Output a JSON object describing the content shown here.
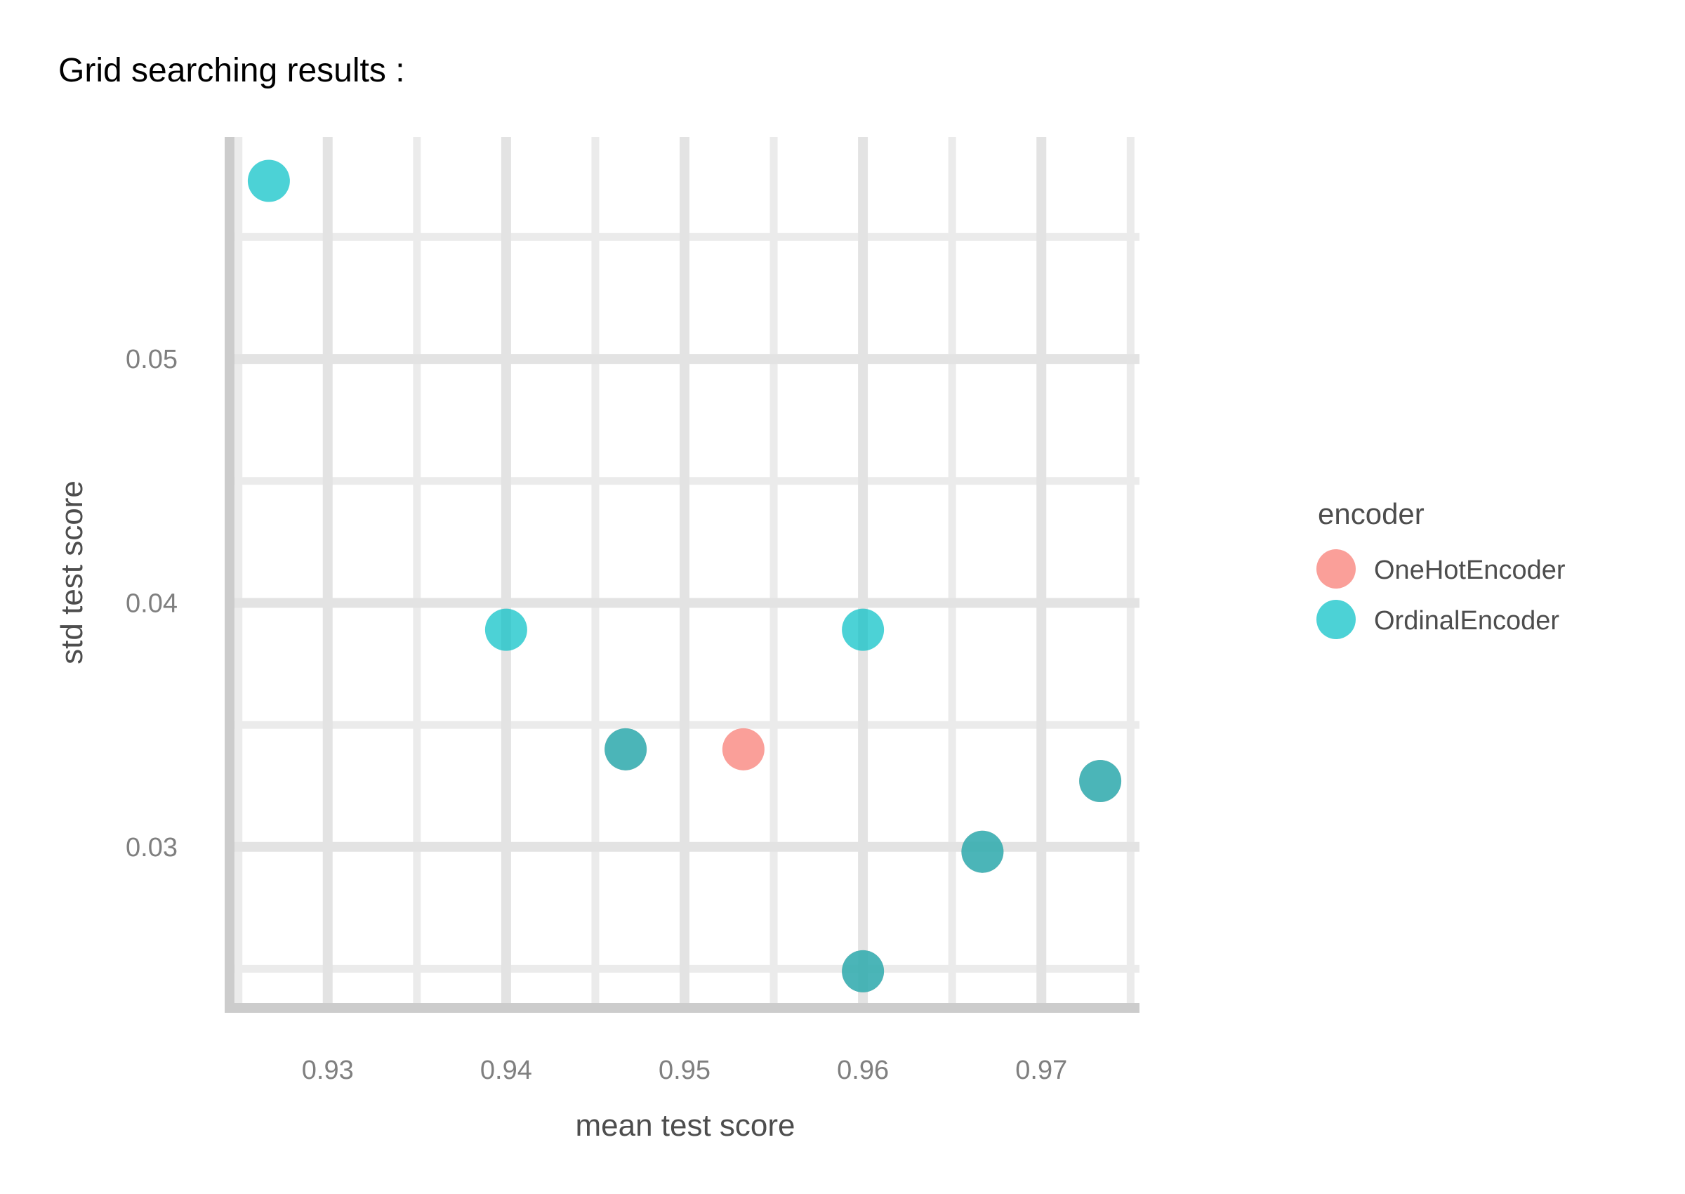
{
  "chart_data": {
    "type": "scatter",
    "title": "Grid searching results :",
    "xlabel": "mean test score",
    "ylabel": "std test score",
    "xlim": [
      0.9245,
      0.9755
    ],
    "ylim": [
      0.0234,
      0.0591
    ],
    "xticks": [
      0.93,
      0.94,
      0.95,
      0.96,
      0.97
    ],
    "xtick_labels": [
      "0.93",
      "0.94",
      "0.95",
      "0.96",
      "0.97"
    ],
    "yticks": [
      0.03,
      0.04,
      0.05
    ],
    "ytick_labels": [
      "0.03",
      "0.04",
      "0.05"
    ],
    "grid": true,
    "legend": {
      "title": "encoder",
      "position": "right"
    },
    "series": [
      {
        "name": "OneHotEncoder",
        "color": "#F8766D",
        "points": [
          {
            "x": 0.9467,
            "y": 0.034
          },
          {
            "x": 0.9533,
            "y": 0.034
          },
          {
            "x": 0.96,
            "y": 0.0249
          },
          {
            "x": 0.9667,
            "y": 0.0298
          },
          {
            "x": 0.9733,
            "y": 0.0327
          }
        ]
      },
      {
        "name": "OrdinalEncoder",
        "color": "#00BFC4",
        "points": [
          {
            "x": 0.9267,
            "y": 0.0573
          },
          {
            "x": 0.94,
            "y": 0.0389
          },
          {
            "x": 0.96,
            "y": 0.0389
          },
          {
            "x": 0.9467,
            "y": 0.034
          },
          {
            "x": 0.96,
            "y": 0.0249
          },
          {
            "x": 0.9667,
            "y": 0.0298
          },
          {
            "x": 0.9733,
            "y": 0.0327
          }
        ]
      }
    ]
  }
}
